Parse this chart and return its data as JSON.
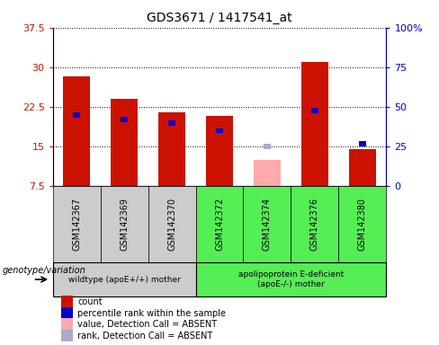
{
  "title": "GDS3671 / 1417541_at",
  "samples": [
    "GSM142367",
    "GSM142369",
    "GSM142370",
    "GSM142372",
    "GSM142374",
    "GSM142376",
    "GSM142380"
  ],
  "count_values": [
    28.2,
    24.0,
    21.5,
    20.8,
    null,
    31.0,
    14.5
  ],
  "count_absent_values": [
    null,
    null,
    null,
    null,
    12.5,
    null,
    null
  ],
  "rank_percent": [
    45,
    42,
    40,
    35,
    null,
    48,
    27
  ],
  "rank_absent_percent": [
    null,
    null,
    null,
    null,
    25,
    null,
    null
  ],
  "ylim_left": [
    7.5,
    37.5
  ],
  "ylim_right": [
    0,
    100
  ],
  "yticks_left": [
    7.5,
    15.0,
    22.5,
    30.0,
    37.5
  ],
  "yticks_right": [
    0,
    25,
    50,
    75,
    100
  ],
  "ytick_labels_left": [
    "7.5",
    "15",
    "22.5",
    "30",
    "37.5"
  ],
  "ytick_labels_right": [
    "0",
    "25",
    "50",
    "75",
    "100%"
  ],
  "group1_indices": [
    0,
    1,
    2
  ],
  "group2_indices": [
    3,
    4,
    5,
    6
  ],
  "group1_label": "wildtype (apoE+/+) mother",
  "group2_label": "apolipoprotein E-deficient\n(apoE-/-) mother",
  "genotype_label": "genotype/variation",
  "color_count": "#cc1100",
  "color_rank": "#0000cc",
  "color_count_absent": "#ffaaaa",
  "color_rank_absent": "#aaaacc",
  "color_group1_bg": "#cccccc",
  "color_group2_bg": "#55ee55",
  "bar_width": 0.55,
  "legend_items": [
    {
      "label": "count",
      "color": "#cc1100"
    },
    {
      "label": "percentile rank within the sample",
      "color": "#0000cc"
    },
    {
      "label": "value, Detection Call = ABSENT",
      "color": "#ffaaaa"
    },
    {
      "label": "rank, Detection Call = ABSENT",
      "color": "#aaaacc"
    }
  ]
}
